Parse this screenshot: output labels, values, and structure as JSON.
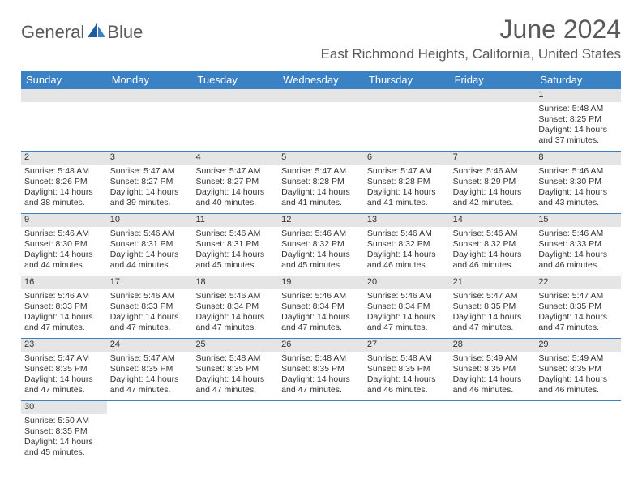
{
  "logo": {
    "text1": "General",
    "text2": "Blue"
  },
  "title": "June 2024",
  "location": "East Richmond Heights, California, United States",
  "colors": {
    "header_bg": "#3b82c4",
    "header_text": "#ffffff",
    "daynum_bg": "#e5e5e5",
    "border": "#3b82c4",
    "text": "#333333",
    "title_text": "#5a5a5a"
  },
  "dayNames": [
    "Sunday",
    "Monday",
    "Tuesday",
    "Wednesday",
    "Thursday",
    "Friday",
    "Saturday"
  ],
  "weeks": [
    [
      {
        "empty": true
      },
      {
        "empty": true
      },
      {
        "empty": true
      },
      {
        "empty": true
      },
      {
        "empty": true
      },
      {
        "empty": true
      },
      {
        "num": "1",
        "sunrise": "Sunrise: 5:48 AM",
        "sunset": "Sunset: 8:25 PM",
        "daylight": "Daylight: 14 hours and 37 minutes."
      }
    ],
    [
      {
        "num": "2",
        "sunrise": "Sunrise: 5:48 AM",
        "sunset": "Sunset: 8:26 PM",
        "daylight": "Daylight: 14 hours and 38 minutes."
      },
      {
        "num": "3",
        "sunrise": "Sunrise: 5:47 AM",
        "sunset": "Sunset: 8:27 PM",
        "daylight": "Daylight: 14 hours and 39 minutes."
      },
      {
        "num": "4",
        "sunrise": "Sunrise: 5:47 AM",
        "sunset": "Sunset: 8:27 PM",
        "daylight": "Daylight: 14 hours and 40 minutes."
      },
      {
        "num": "5",
        "sunrise": "Sunrise: 5:47 AM",
        "sunset": "Sunset: 8:28 PM",
        "daylight": "Daylight: 14 hours and 41 minutes."
      },
      {
        "num": "6",
        "sunrise": "Sunrise: 5:47 AM",
        "sunset": "Sunset: 8:28 PM",
        "daylight": "Daylight: 14 hours and 41 minutes."
      },
      {
        "num": "7",
        "sunrise": "Sunrise: 5:46 AM",
        "sunset": "Sunset: 8:29 PM",
        "daylight": "Daylight: 14 hours and 42 minutes."
      },
      {
        "num": "8",
        "sunrise": "Sunrise: 5:46 AM",
        "sunset": "Sunset: 8:30 PM",
        "daylight": "Daylight: 14 hours and 43 minutes."
      }
    ],
    [
      {
        "num": "9",
        "sunrise": "Sunrise: 5:46 AM",
        "sunset": "Sunset: 8:30 PM",
        "daylight": "Daylight: 14 hours and 44 minutes."
      },
      {
        "num": "10",
        "sunrise": "Sunrise: 5:46 AM",
        "sunset": "Sunset: 8:31 PM",
        "daylight": "Daylight: 14 hours and 44 minutes."
      },
      {
        "num": "11",
        "sunrise": "Sunrise: 5:46 AM",
        "sunset": "Sunset: 8:31 PM",
        "daylight": "Daylight: 14 hours and 45 minutes."
      },
      {
        "num": "12",
        "sunrise": "Sunrise: 5:46 AM",
        "sunset": "Sunset: 8:32 PM",
        "daylight": "Daylight: 14 hours and 45 minutes."
      },
      {
        "num": "13",
        "sunrise": "Sunrise: 5:46 AM",
        "sunset": "Sunset: 8:32 PM",
        "daylight": "Daylight: 14 hours and 46 minutes."
      },
      {
        "num": "14",
        "sunrise": "Sunrise: 5:46 AM",
        "sunset": "Sunset: 8:32 PM",
        "daylight": "Daylight: 14 hours and 46 minutes."
      },
      {
        "num": "15",
        "sunrise": "Sunrise: 5:46 AM",
        "sunset": "Sunset: 8:33 PM",
        "daylight": "Daylight: 14 hours and 46 minutes."
      }
    ],
    [
      {
        "num": "16",
        "sunrise": "Sunrise: 5:46 AM",
        "sunset": "Sunset: 8:33 PM",
        "daylight": "Daylight: 14 hours and 47 minutes."
      },
      {
        "num": "17",
        "sunrise": "Sunrise: 5:46 AM",
        "sunset": "Sunset: 8:33 PM",
        "daylight": "Daylight: 14 hours and 47 minutes."
      },
      {
        "num": "18",
        "sunrise": "Sunrise: 5:46 AM",
        "sunset": "Sunset: 8:34 PM",
        "daylight": "Daylight: 14 hours and 47 minutes."
      },
      {
        "num": "19",
        "sunrise": "Sunrise: 5:46 AM",
        "sunset": "Sunset: 8:34 PM",
        "daylight": "Daylight: 14 hours and 47 minutes."
      },
      {
        "num": "20",
        "sunrise": "Sunrise: 5:46 AM",
        "sunset": "Sunset: 8:34 PM",
        "daylight": "Daylight: 14 hours and 47 minutes."
      },
      {
        "num": "21",
        "sunrise": "Sunrise: 5:47 AM",
        "sunset": "Sunset: 8:35 PM",
        "daylight": "Daylight: 14 hours and 47 minutes."
      },
      {
        "num": "22",
        "sunrise": "Sunrise: 5:47 AM",
        "sunset": "Sunset: 8:35 PM",
        "daylight": "Daylight: 14 hours and 47 minutes."
      }
    ],
    [
      {
        "num": "23",
        "sunrise": "Sunrise: 5:47 AM",
        "sunset": "Sunset: 8:35 PM",
        "daylight": "Daylight: 14 hours and 47 minutes."
      },
      {
        "num": "24",
        "sunrise": "Sunrise: 5:47 AM",
        "sunset": "Sunset: 8:35 PM",
        "daylight": "Daylight: 14 hours and 47 minutes."
      },
      {
        "num": "25",
        "sunrise": "Sunrise: 5:48 AM",
        "sunset": "Sunset: 8:35 PM",
        "daylight": "Daylight: 14 hours and 47 minutes."
      },
      {
        "num": "26",
        "sunrise": "Sunrise: 5:48 AM",
        "sunset": "Sunset: 8:35 PM",
        "daylight": "Daylight: 14 hours and 47 minutes."
      },
      {
        "num": "27",
        "sunrise": "Sunrise: 5:48 AM",
        "sunset": "Sunset: 8:35 PM",
        "daylight": "Daylight: 14 hours and 46 minutes."
      },
      {
        "num": "28",
        "sunrise": "Sunrise: 5:49 AM",
        "sunset": "Sunset: 8:35 PM",
        "daylight": "Daylight: 14 hours and 46 minutes."
      },
      {
        "num": "29",
        "sunrise": "Sunrise: 5:49 AM",
        "sunset": "Sunset: 8:35 PM",
        "daylight": "Daylight: 14 hours and 46 minutes."
      }
    ],
    [
      {
        "num": "30",
        "sunrise": "Sunrise: 5:50 AM",
        "sunset": "Sunset: 8:35 PM",
        "daylight": "Daylight: 14 hours and 45 minutes."
      },
      {
        "empty": true
      },
      {
        "empty": true
      },
      {
        "empty": true
      },
      {
        "empty": true
      },
      {
        "empty": true
      },
      {
        "empty": true
      }
    ]
  ]
}
